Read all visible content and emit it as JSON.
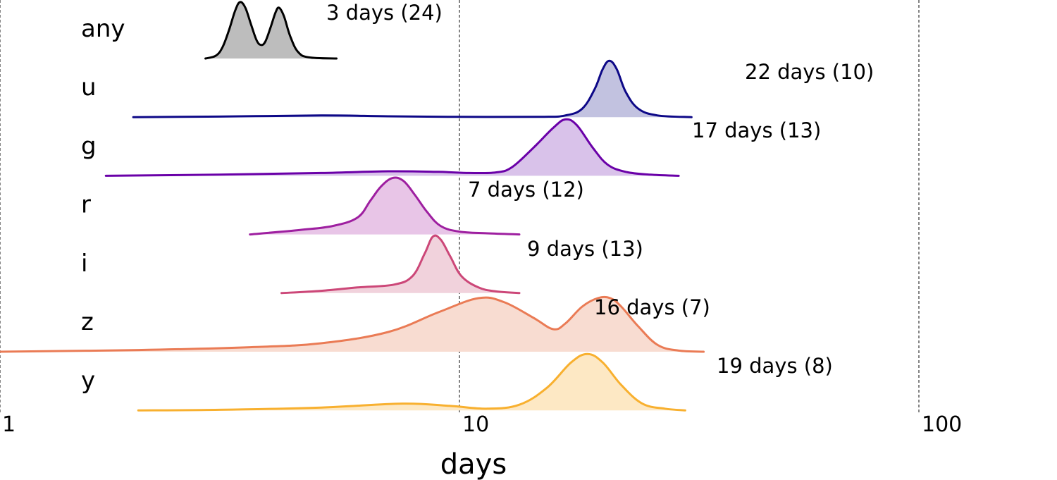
{
  "chart_data": {
    "type": "ridgeline",
    "xlabel": "days",
    "x_scale": "log",
    "xlim": [
      1,
      130
    ],
    "x_ticks": [
      {
        "value": 1,
        "label": "1"
      },
      {
        "value": 10,
        "label": "10"
      },
      {
        "value": 100,
        "label": "100"
      }
    ],
    "grid": "vertical dashed lines at 1, 10 and 100",
    "rows": [
      {
        "name": "any",
        "annotation": "3 days (24)",
        "annotation_days": 3,
        "n": 24,
        "color": "#000000",
        "fill": "#bdbdbd",
        "x_range": [
          2.8,
          5.4
        ],
        "points": [
          [
            2.8,
            0
          ],
          [
            2.95,
            0.05
          ],
          [
            3.05,
            0.2
          ],
          [
            3.15,
            0.5
          ],
          [
            3.25,
            0.85
          ],
          [
            3.33,
            1.0
          ],
          [
            3.42,
            0.9
          ],
          [
            3.52,
            0.6
          ],
          [
            3.62,
            0.32
          ],
          [
            3.7,
            0.24
          ],
          [
            3.78,
            0.3
          ],
          [
            3.88,
            0.55
          ],
          [
            3.98,
            0.82
          ],
          [
            4.05,
            0.9
          ],
          [
            4.15,
            0.75
          ],
          [
            4.28,
            0.4
          ],
          [
            4.45,
            0.12
          ],
          [
            4.7,
            0.02
          ],
          [
            5.4,
            0
          ]
        ]
      },
      {
        "name": "u",
        "annotation": "22 days (10)",
        "annotation_days": 22,
        "n": 10,
        "color": "#0d0887",
        "fill": "#c2c2e0",
        "x_range": [
          1.95,
          32
        ],
        "points": [
          [
            1.95,
            0
          ],
          [
            3,
            0.01
          ],
          [
            5,
            0.03
          ],
          [
            7,
            0.015
          ],
          [
            10,
            0.005
          ],
          [
            15,
            0.005
          ],
          [
            17,
            0.03
          ],
          [
            18.5,
            0.15
          ],
          [
            19.7,
            0.5
          ],
          [
            20.5,
            0.85
          ],
          [
            21.2,
            1.0
          ],
          [
            22,
            0.85
          ],
          [
            23,
            0.45
          ],
          [
            24.5,
            0.15
          ],
          [
            27,
            0.03
          ],
          [
            32,
            0
          ]
        ]
      },
      {
        "name": "g",
        "annotation": "17 days (13)",
        "annotation_days": 17,
        "n": 13,
        "color": "#6a00a8",
        "fill": "#d9c2ea",
        "x_range": [
          1.7,
          30
        ],
        "points": [
          [
            1.7,
            0
          ],
          [
            3,
            0.02
          ],
          [
            5,
            0.05
          ],
          [
            7,
            0.08
          ],
          [
            9,
            0.07
          ],
          [
            10.5,
            0.05
          ],
          [
            12,
            0.06
          ],
          [
            13,
            0.15
          ],
          [
            14.5,
            0.5
          ],
          [
            16,
            0.85
          ],
          [
            17,
            1.0
          ],
          [
            18,
            0.9
          ],
          [
            19.5,
            0.5
          ],
          [
            21,
            0.2
          ],
          [
            23,
            0.07
          ],
          [
            26,
            0.02
          ],
          [
            30,
            0
          ]
        ]
      },
      {
        "name": "r",
        "annotation": "7 days (12)",
        "annotation_days": 7,
        "n": 12,
        "color": "#9e1fa0",
        "fill": "#e8c5e7",
        "x_range": [
          3.5,
          13.5
        ],
        "points": [
          [
            3.5,
            0
          ],
          [
            4.5,
            0.08
          ],
          [
            5.3,
            0.15
          ],
          [
            6,
            0.3
          ],
          [
            6.4,
            0.6
          ],
          [
            6.75,
            0.85
          ],
          [
            7.15,
            1.0
          ],
          [
            7.55,
            0.95
          ],
          [
            8,
            0.7
          ],
          [
            8.5,
            0.4
          ],
          [
            9.1,
            0.15
          ],
          [
            10,
            0.05
          ],
          [
            11.5,
            0.02
          ],
          [
            13.5,
            0
          ]
        ]
      },
      {
        "name": "i",
        "annotation": "9 days (13)",
        "annotation_days": 9,
        "n": 13,
        "color": "#cc4778",
        "fill": "#f1d2dc",
        "x_range": [
          4.1,
          13.5
        ],
        "points": [
          [
            4.1,
            0
          ],
          [
            5,
            0.04
          ],
          [
            6,
            0.1
          ],
          [
            7.2,
            0.15
          ],
          [
            7.9,
            0.3
          ],
          [
            8.4,
            0.7
          ],
          [
            8.75,
            1.0
          ],
          [
            9.1,
            0.95
          ],
          [
            9.55,
            0.65
          ],
          [
            10.1,
            0.3
          ],
          [
            11,
            0.1
          ],
          [
            12,
            0.03
          ],
          [
            13.5,
            0
          ]
        ]
      },
      {
        "name": "z",
        "annotation": "16 days (7)",
        "annotation_days": 16,
        "n": 7,
        "color": "#ea7b55",
        "fill": "#f8dcd1",
        "x_range": [
          1.0,
          34
        ],
        "points": [
          [
            1.0,
            0
          ],
          [
            2,
            0.03
          ],
          [
            3.5,
            0.08
          ],
          [
            5,
            0.15
          ],
          [
            7,
            0.35
          ],
          [
            9,
            0.7
          ],
          [
            11,
            0.95
          ],
          [
            12.5,
            0.88
          ],
          [
            14.5,
            0.6
          ],
          [
            16,
            0.4
          ],
          [
            17,
            0.5
          ],
          [
            18.5,
            0.8
          ],
          [
            20,
            0.95
          ],
          [
            21.3,
            0.95
          ],
          [
            22.5,
            0.8
          ],
          [
            24.5,
            0.45
          ],
          [
            27,
            0.12
          ],
          [
            30,
            0.02
          ],
          [
            34,
            0
          ]
        ]
      },
      {
        "name": "y",
        "annotation": "19 days (8)",
        "annotation_days": 19,
        "n": 8,
        "color": "#f8b02f",
        "fill": "#fde8c4",
        "x_range": [
          2.0,
          31
        ],
        "points": [
          [
            2.0,
            0
          ],
          [
            3,
            0.01
          ],
          [
            5,
            0.05
          ],
          [
            7.5,
            0.12
          ],
          [
            9.5,
            0.08
          ],
          [
            11.5,
            0.03
          ],
          [
            13.5,
            0.1
          ],
          [
            15.5,
            0.4
          ],
          [
            17.5,
            0.85
          ],
          [
            19,
            1.0
          ],
          [
            20.5,
            0.85
          ],
          [
            22.5,
            0.45
          ],
          [
            25,
            0.12
          ],
          [
            28,
            0.03
          ],
          [
            31,
            0
          ]
        ]
      }
    ]
  }
}
